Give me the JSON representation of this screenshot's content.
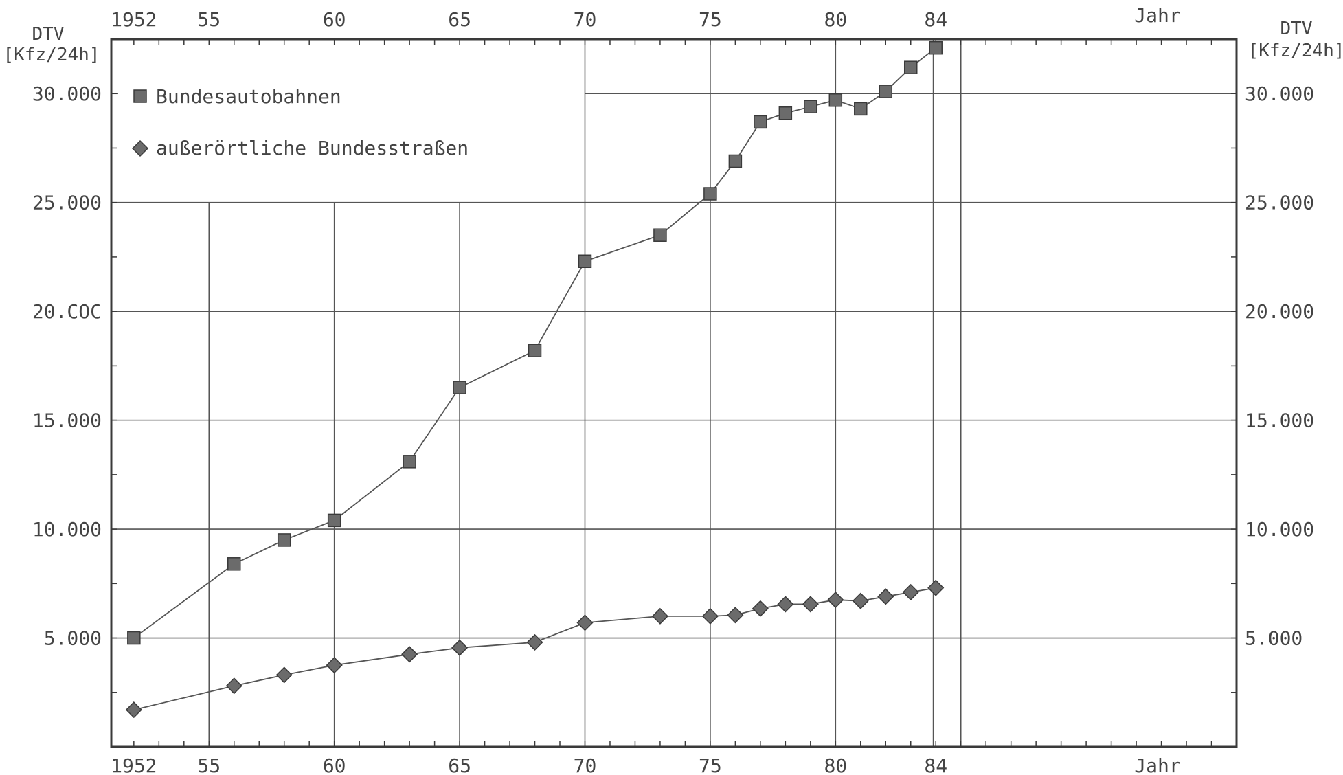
{
  "chart_data": {
    "type": "line",
    "x_unit": "Jahr",
    "y_label": "DTV",
    "y_unit": "[Kfz/24h]",
    "x_ticks": [
      {
        "value": 1952,
        "label": "1952"
      },
      {
        "value": 1955,
        "label": "55"
      },
      {
        "value": 1960,
        "label": "60"
      },
      {
        "value": 1965,
        "label": "65"
      },
      {
        "value": 1970,
        "label": "70"
      },
      {
        "value": 1975,
        "label": "75"
      },
      {
        "value": 1980,
        "label": "80"
      },
      {
        "value": 1984,
        "label": "84"
      }
    ],
    "y_ticks_left": [
      {
        "value": 5000,
        "label": "5.000"
      },
      {
        "value": 10000,
        "label": "10.000"
      },
      {
        "value": 15000,
        "label": "15.000"
      },
      {
        "value": 20000,
        "label": "20.COC"
      },
      {
        "value": 25000,
        "label": "25.000"
      },
      {
        "value": 30000,
        "label": "30.000"
      }
    ],
    "y_ticks_right": [
      {
        "value": 5000,
        "label": "5.000"
      },
      {
        "value": 10000,
        "label": "10.000"
      },
      {
        "value": 15000,
        "label": "15.000"
      },
      {
        "value": 20000,
        "label": "20.000"
      },
      {
        "value": 25000,
        "label": "25.000"
      },
      {
        "value": 30000,
        "label": "30.000"
      }
    ],
    "xlim": [
      1951.1,
      1996
    ],
    "ylim": [
      0,
      32500
    ],
    "grid": true,
    "legend_position": "top-left",
    "series": [
      {
        "name": "Bundesautobahnen",
        "marker": "square",
        "x": [
          1952,
          1956,
          1958,
          1960,
          1963,
          1965,
          1968,
          1970,
          1973,
          1975,
          1976,
          1977,
          1978,
          1979,
          1980,
          1981,
          1982,
          1983,
          1984
        ],
        "y": [
          5000,
          8400,
          9500,
          10400,
          13100,
          16500,
          18200,
          22300,
          23500,
          25400,
          26900,
          28700,
          29100,
          29400,
          29700,
          29300,
          30100,
          31200,
          32100
        ]
      },
      {
        "name": "außerörtliche Bundesstraßen",
        "marker": "diamond",
        "x": [
          1952,
          1956,
          1958,
          1960,
          1963,
          1965,
          1968,
          1970,
          1973,
          1975,
          1976,
          1977,
          1978,
          1979,
          1980,
          1981,
          1982,
          1983,
          1984
        ],
        "y": [
          1700,
          2800,
          3300,
          3750,
          4250,
          4550,
          4800,
          5700,
          6000,
          6000,
          6050,
          6350,
          6550,
          6550,
          6750,
          6700,
          6900,
          7100,
          7300
        ]
      }
    ]
  },
  "colors": {
    "axis": "#3a3a3a",
    "grid": "#555555",
    "marker_fill": "#6b6b6b",
    "marker_stroke": "#3a3a3a",
    "line": "#555555"
  }
}
